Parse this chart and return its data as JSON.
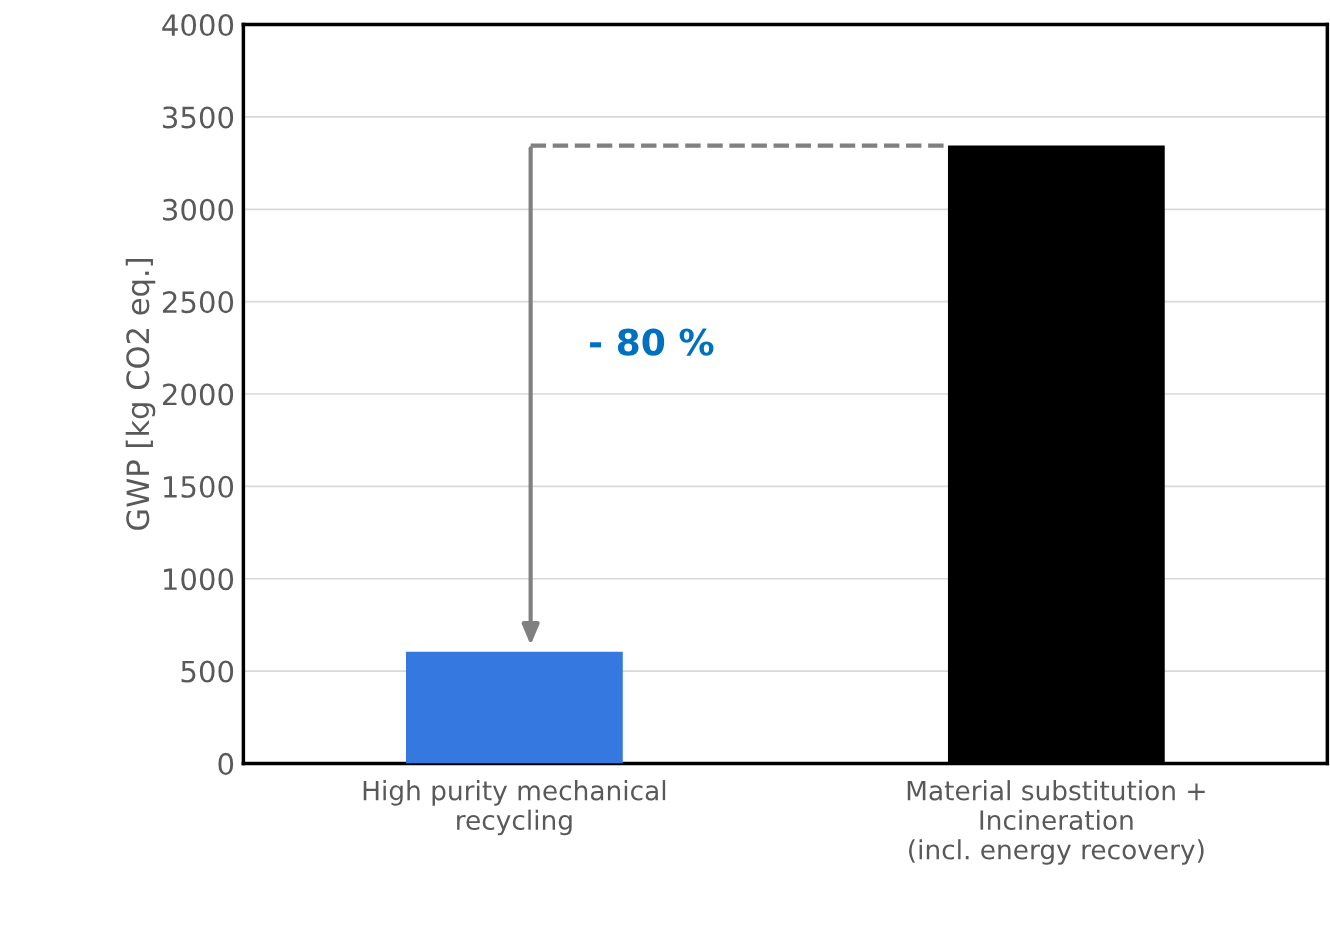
{
  "chart_data": {
    "type": "bar",
    "ylabel": "GWP [kg CO2 eq.]",
    "categories": [
      "High purity mechanical\nrecycling",
      "Material substitution +\nIncineration\n(incl. energy recovery)"
    ],
    "values": [
      605,
      3345
    ],
    "colors": [
      "#3579e0",
      "#000000"
    ],
    "ylim": [
      0,
      4000
    ],
    "yticks": [
      0,
      500,
      1000,
      1500,
      2000,
      2500,
      3000,
      3500,
      4000
    ],
    "grid": "y",
    "ref_lines": [
      {
        "axis": "y",
        "value": 3345,
        "label": null,
        "color": "#808080",
        "line_style": "dashed"
      }
    ],
    "annotations": [
      "- 80 %"
    ]
  }
}
